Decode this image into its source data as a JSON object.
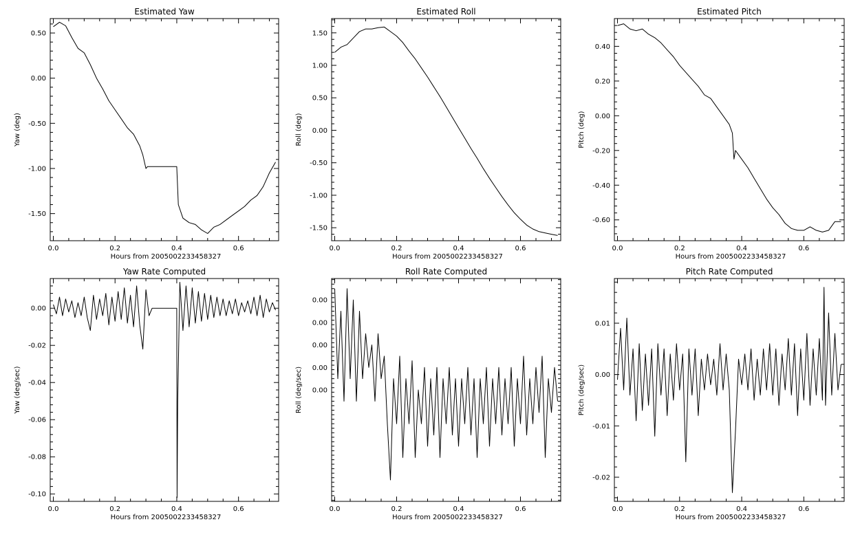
{
  "chart_data": [
    {
      "type": "line",
      "title": "Estimated Yaw",
      "xlabel": "Hours from 2005002233458327",
      "ylabel": "Yaw (deg)",
      "xlim": [
        -0.01,
        0.73
      ],
      "ylim": [
        -1.8,
        0.66
      ],
      "x_ticks": [
        "0.0",
        "0.2",
        "0.4",
        "0.6"
      ],
      "y_ticks": [
        "0.50",
        "0.00",
        "-0.50",
        "-1.00",
        "-1.50"
      ],
      "x": [
        0.0,
        0.02,
        0.04,
        0.06,
        0.08,
        0.1,
        0.12,
        0.14,
        0.16,
        0.18,
        0.2,
        0.22,
        0.24,
        0.26,
        0.28,
        0.29,
        0.3,
        0.305,
        0.35,
        0.4,
        0.405,
        0.42,
        0.44,
        0.46,
        0.48,
        0.5,
        0.52,
        0.54,
        0.56,
        0.58,
        0.6,
        0.62,
        0.64,
        0.66,
        0.68,
        0.7,
        0.72
      ],
      "y": [
        0.57,
        0.62,
        0.58,
        0.45,
        0.33,
        0.28,
        0.15,
        0.0,
        -0.12,
        -0.25,
        -0.35,
        -0.45,
        -0.55,
        -0.62,
        -0.75,
        -0.85,
        -1.0,
        -0.98,
        -0.98,
        -0.98,
        -1.4,
        -1.55,
        -1.6,
        -1.62,
        -1.68,
        -1.72,
        -1.65,
        -1.62,
        -1.57,
        -1.52,
        -1.47,
        -1.42,
        -1.35,
        -1.3,
        -1.2,
        -1.05,
        -0.93
      ]
    },
    {
      "type": "line",
      "title": "Estimated Roll",
      "xlabel": "Hours from 2005002233458327",
      "ylabel": "Roll (deg)",
      "xlim": [
        -0.01,
        0.73
      ],
      "ylim": [
        -1.7,
        1.72
      ],
      "x_ticks": [
        "0.0",
        "0.2",
        "0.4",
        "0.6"
      ],
      "y_ticks": [
        "1.50",
        "1.00",
        "0.50",
        "0.00",
        "-0.50",
        "-1.00",
        "-1.50"
      ],
      "x": [
        0.0,
        0.02,
        0.04,
        0.06,
        0.08,
        0.1,
        0.12,
        0.14,
        0.16,
        0.18,
        0.2,
        0.22,
        0.24,
        0.26,
        0.28,
        0.3,
        0.32,
        0.34,
        0.36,
        0.38,
        0.4,
        0.42,
        0.44,
        0.46,
        0.48,
        0.5,
        0.52,
        0.54,
        0.56,
        0.58,
        0.6,
        0.62,
        0.64,
        0.66,
        0.68,
        0.7,
        0.72
      ],
      "y": [
        1.2,
        1.28,
        1.32,
        1.42,
        1.52,
        1.56,
        1.56,
        1.58,
        1.59,
        1.52,
        1.45,
        1.35,
        1.22,
        1.1,
        0.96,
        0.82,
        0.67,
        0.52,
        0.36,
        0.2,
        0.04,
        -0.12,
        -0.28,
        -0.43,
        -0.59,
        -0.74,
        -0.88,
        -1.02,
        -1.15,
        -1.27,
        -1.37,
        -1.46,
        -1.52,
        -1.56,
        -1.58,
        -1.6,
        -1.62
      ]
    },
    {
      "type": "line",
      "title": "Estimated Pitch",
      "xlabel": "Hours from 2005002233458327",
      "ylabel": "Pitch (deg)",
      "xlim": [
        -0.01,
        0.73
      ],
      "ylim": [
        -0.72,
        0.56
      ],
      "x_ticks": [
        "0.0",
        "0.2",
        "0.4",
        "0.6"
      ],
      "y_ticks": [
        "0.40",
        "0.20",
        "0.00",
        "-0.20",
        "-0.40",
        "-0.60"
      ],
      "x": [
        0.0,
        0.02,
        0.04,
        0.06,
        0.08,
        0.1,
        0.12,
        0.14,
        0.16,
        0.18,
        0.2,
        0.22,
        0.24,
        0.26,
        0.28,
        0.3,
        0.32,
        0.34,
        0.36,
        0.37,
        0.375,
        0.38,
        0.4,
        0.42,
        0.44,
        0.46,
        0.48,
        0.5,
        0.52,
        0.54,
        0.56,
        0.58,
        0.6,
        0.62,
        0.64,
        0.66,
        0.68,
        0.7,
        0.72
      ],
      "y": [
        0.52,
        0.53,
        0.5,
        0.49,
        0.5,
        0.47,
        0.45,
        0.42,
        0.38,
        0.34,
        0.29,
        0.25,
        0.21,
        0.17,
        0.12,
        0.1,
        0.05,
        0.0,
        -0.05,
        -0.1,
        -0.25,
        -0.2,
        -0.25,
        -0.3,
        -0.36,
        -0.42,
        -0.48,
        -0.53,
        -0.57,
        -0.62,
        -0.65,
        -0.66,
        -0.66,
        -0.64,
        -0.66,
        -0.67,
        -0.66,
        -0.61,
        -0.61
      ]
    },
    {
      "type": "line",
      "title": "Yaw Rate Computed",
      "xlabel": "Hours from 2005002233458327",
      "ylabel": "Yaw (deg/sec)",
      "xlim": [
        -0.01,
        0.73
      ],
      "ylim": [
        -0.104,
        0.016
      ],
      "x_ticks": [
        "0.0",
        "0.2",
        "0.4",
        "0.6"
      ],
      "y_ticks": [
        "0.00",
        "-0.02",
        "-0.04",
        "-0.06",
        "-0.08",
        "-0.10"
      ],
      "x": [
        0.0,
        0.01,
        0.02,
        0.03,
        0.04,
        0.05,
        0.06,
        0.07,
        0.08,
        0.09,
        0.1,
        0.11,
        0.12,
        0.13,
        0.14,
        0.15,
        0.16,
        0.17,
        0.18,
        0.19,
        0.2,
        0.21,
        0.22,
        0.23,
        0.24,
        0.25,
        0.26,
        0.27,
        0.28,
        0.29,
        0.3,
        0.31,
        0.32,
        0.35,
        0.4,
        0.401,
        0.403,
        0.41,
        0.42,
        0.43,
        0.44,
        0.45,
        0.46,
        0.47,
        0.48,
        0.49,
        0.5,
        0.51,
        0.52,
        0.53,
        0.54,
        0.55,
        0.56,
        0.57,
        0.58,
        0.59,
        0.6,
        0.61,
        0.62,
        0.63,
        0.64,
        0.65,
        0.66,
        0.67,
        0.68,
        0.69,
        0.7,
        0.71,
        0.72
      ],
      "y": [
        0.002,
        -0.003,
        0.006,
        -0.004,
        0.005,
        -0.002,
        0.004,
        -0.005,
        0.003,
        -0.004,
        0.006,
        -0.005,
        -0.012,
        0.007,
        -0.006,
        0.005,
        -0.004,
        0.008,
        -0.009,
        0.006,
        -0.007,
        0.009,
        -0.006,
        0.011,
        -0.008,
        0.007,
        -0.01,
        0.012,
        -0.009,
        -0.022,
        0.01,
        -0.004,
        0.0,
        0.0,
        0.0,
        -0.102,
        -0.05,
        0.014,
        -0.012,
        0.012,
        -0.01,
        0.011,
        -0.008,
        0.009,
        -0.007,
        0.008,
        -0.006,
        0.007,
        -0.005,
        0.006,
        -0.004,
        0.005,
        -0.004,
        0.004,
        -0.003,
        0.005,
        -0.004,
        0.003,
        -0.002,
        0.004,
        -0.003,
        0.006,
        -0.004,
        0.007,
        -0.005,
        0.005,
        -0.002,
        0.003,
        -0.001
      ]
    },
    {
      "type": "line",
      "title": "Roll Rate Computed",
      "xlabel": "Hours from 2005002233458327",
      "ylabel": "Roll (deg/sec)",
      "xlim": [
        -0.01,
        0.73
      ],
      "ylim": [
        -0.00745,
        0.00245
      ],
      "x_ticks": [
        "0.0",
        "0.2",
        "0.4",
        "0.6"
      ],
      "y_ticks": [
        "0.00",
        "0.00",
        "0.00",
        "0.00",
        "0.00"
      ],
      "x": [
        0.0,
        0.01,
        0.02,
        0.03,
        0.04,
        0.05,
        0.06,
        0.07,
        0.08,
        0.09,
        0.1,
        0.11,
        0.12,
        0.13,
        0.14,
        0.15,
        0.16,
        0.17,
        0.18,
        0.19,
        0.2,
        0.21,
        0.22,
        0.23,
        0.24,
        0.25,
        0.26,
        0.27,
        0.28,
        0.29,
        0.3,
        0.31,
        0.32,
        0.33,
        0.34,
        0.35,
        0.36,
        0.37,
        0.38,
        0.39,
        0.4,
        0.41,
        0.42,
        0.43,
        0.44,
        0.45,
        0.46,
        0.47,
        0.48,
        0.49,
        0.5,
        0.51,
        0.52,
        0.53,
        0.54,
        0.55,
        0.56,
        0.57,
        0.58,
        0.59,
        0.6,
        0.61,
        0.62,
        0.63,
        0.64,
        0.65,
        0.66,
        0.67,
        0.68,
        0.69,
        0.7,
        0.71,
        0.72
      ],
      "y": [
        0.002,
        -0.002,
        0.001,
        -0.003,
        0.002,
        -0.002,
        0.0015,
        -0.003,
        0.001,
        -0.002,
        0.0,
        -0.0015,
        -0.0005,
        -0.003,
        0.0,
        -0.002,
        -0.001,
        -0.004,
        -0.0065,
        -0.002,
        -0.004,
        -0.001,
        -0.0055,
        -0.002,
        -0.004,
        -0.0012,
        -0.0055,
        -0.0025,
        -0.004,
        -0.0015,
        -0.005,
        -0.002,
        -0.0045,
        -0.0015,
        -0.0055,
        -0.002,
        -0.004,
        -0.0015,
        -0.0045,
        -0.002,
        -0.005,
        -0.002,
        -0.004,
        -0.0015,
        -0.0045,
        -0.002,
        -0.0055,
        -0.002,
        -0.004,
        -0.0015,
        -0.005,
        -0.002,
        -0.004,
        -0.0015,
        -0.0045,
        -0.002,
        -0.004,
        -0.0015,
        -0.005,
        -0.002,
        -0.004,
        -0.001,
        -0.0045,
        -0.002,
        -0.004,
        -0.0015,
        -0.0035,
        -0.001,
        -0.0055,
        -0.002,
        -0.0035,
        -0.0015,
        -0.003
      ]
    },
    {
      "type": "line",
      "title": "Pitch Rate Computed",
      "xlabel": "Hours from 2005002233458327",
      "ylabel": "Pitch (deg/sec)",
      "xlim": [
        -0.01,
        0.73
      ],
      "ylim": [
        -0.0247,
        0.0187
      ],
      "x_ticks": [
        "0.0",
        "0.2",
        "0.4",
        "0.6"
      ],
      "y_ticks": [
        "0.01",
        "0.00",
        "-0.01",
        "-0.02"
      ],
      "x": [
        0.0,
        0.01,
        0.02,
        0.03,
        0.04,
        0.05,
        0.06,
        0.07,
        0.08,
        0.09,
        0.1,
        0.11,
        0.12,
        0.13,
        0.14,
        0.15,
        0.16,
        0.17,
        0.18,
        0.19,
        0.2,
        0.21,
        0.22,
        0.23,
        0.24,
        0.25,
        0.26,
        0.27,
        0.28,
        0.29,
        0.3,
        0.31,
        0.32,
        0.33,
        0.34,
        0.35,
        0.36,
        0.37,
        0.38,
        0.39,
        0.4,
        0.41,
        0.42,
        0.43,
        0.44,
        0.45,
        0.46,
        0.47,
        0.48,
        0.49,
        0.5,
        0.51,
        0.52,
        0.53,
        0.54,
        0.55,
        0.56,
        0.57,
        0.58,
        0.59,
        0.6,
        0.61,
        0.62,
        0.63,
        0.64,
        0.65,
        0.66,
        0.665,
        0.67,
        0.68,
        0.69,
        0.7,
        0.71,
        0.72
      ],
      "y": [
        -0.001,
        0.009,
        -0.003,
        0.011,
        -0.004,
        0.005,
        -0.009,
        0.006,
        -0.007,
        0.004,
        -0.006,
        0.005,
        -0.012,
        0.006,
        -0.004,
        0.005,
        -0.008,
        0.004,
        -0.005,
        0.006,
        -0.003,
        0.004,
        -0.017,
        0.005,
        -0.004,
        0.005,
        -0.008,
        0.003,
        -0.003,
        0.004,
        -0.002,
        0.003,
        -0.004,
        0.006,
        -0.003,
        0.004,
        -0.003,
        -0.023,
        -0.011,
        0.003,
        -0.002,
        0.004,
        -0.003,
        0.005,
        -0.005,
        0.003,
        -0.004,
        0.005,
        -0.003,
        0.006,
        -0.004,
        0.005,
        -0.006,
        0.004,
        -0.003,
        0.007,
        -0.004,
        0.006,
        -0.008,
        0.005,
        -0.005,
        0.008,
        -0.006,
        0.005,
        -0.004,
        0.007,
        -0.005,
        0.017,
        -0.006,
        0.012,
        -0.004,
        0.008,
        -0.003,
        0.002
      ]
    }
  ]
}
